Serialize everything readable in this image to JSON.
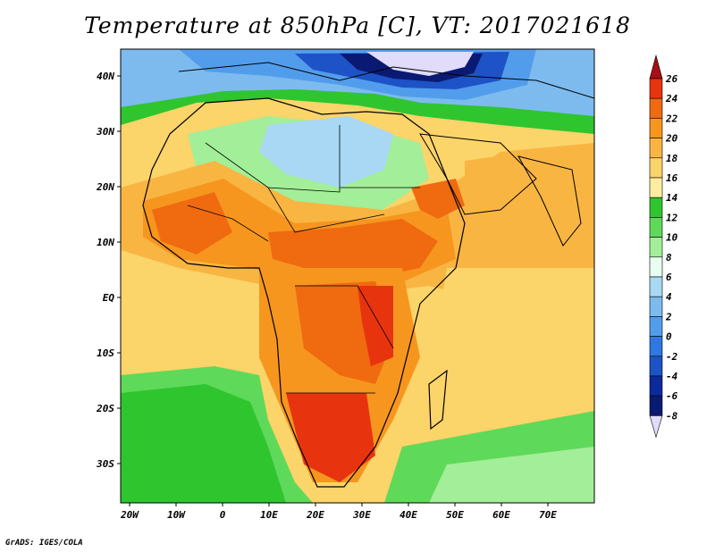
{
  "title": "Temperature at 850hPa [C], VT: 2017021618",
  "footer": "GrADS: IGES/COLA",
  "map": {
    "lon_range": [
      -23,
      80
    ],
    "lat_range": [
      -36,
      45
    ],
    "lon_ticks": [
      "20W",
      "10W",
      "0",
      "10E",
      "20E",
      "30E",
      "40E",
      "50E",
      "60E",
      "70E"
    ],
    "lat_ticks": [
      "40N",
      "30N",
      "20N",
      "10N",
      "EQ",
      "10S",
      "20S",
      "30S"
    ]
  },
  "colorbar": {
    "labels": [
      "26",
      "24",
      "22",
      "20",
      "18",
      "16",
      "14",
      "12",
      "10",
      "8",
      "6",
      "4",
      "2",
      "0",
      "-2",
      "-4",
      "-6",
      "-8"
    ],
    "colors": [
      "#a50f15",
      "#e8340e",
      "#f06a10",
      "#f6961e",
      "#f9b542",
      "#fbd46a",
      "#fdeda0",
      "#2fc52f",
      "#5fd95a",
      "#a3ee98",
      "#e6fff0",
      "#a9d8f5",
      "#7dbbee",
      "#529deb",
      "#2f78e0",
      "#1d53c6",
      "#0c2a9c",
      "#0a1a72",
      "#e0dcfa"
    ]
  }
}
